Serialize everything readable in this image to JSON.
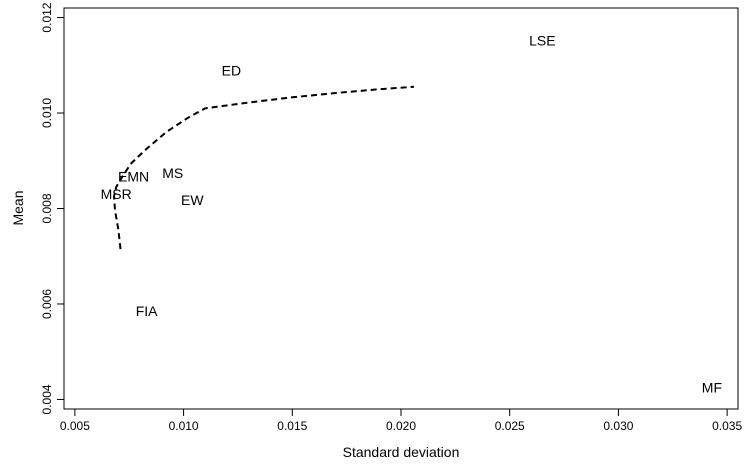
{
  "chart_data": {
    "type": "scatter",
    "title": "",
    "xlabel": "Standard deviation",
    "ylabel": "Mean",
    "xlim": [
      0.0045,
      0.0355
    ],
    "ylim": [
      0.0038,
      0.0122
    ],
    "x_ticks": [
      {
        "value": 0.005,
        "label": "0.005"
      },
      {
        "value": 0.01,
        "label": "0.010"
      },
      {
        "value": 0.015,
        "label": "0.015"
      },
      {
        "value": 0.02,
        "label": "0.020"
      },
      {
        "value": 0.025,
        "label": "0.025"
      },
      {
        "value": 0.03,
        "label": "0.030"
      },
      {
        "value": 0.035,
        "label": "0.035"
      }
    ],
    "y_ticks": [
      {
        "value": 0.004,
        "label": "0.004"
      },
      {
        "value": 0.006,
        "label": "0.006"
      },
      {
        "value": 0.008,
        "label": "0.008"
      },
      {
        "value": 0.01,
        "label": "0.010"
      },
      {
        "value": 0.012,
        "label": "0.012"
      }
    ],
    "grid": false,
    "legend": "none",
    "points": [
      {
        "label": "LSE",
        "x": 0.0265,
        "y": 0.01152
      },
      {
        "label": "ED",
        "x": 0.0122,
        "y": 0.01089
      },
      {
        "label": "MS",
        "x": 0.0095,
        "y": 0.00874
      },
      {
        "label": "EMN",
        "x": 0.0077,
        "y": 0.00867
      },
      {
        "label": "EW",
        "x": 0.0104,
        "y": 0.00818
      },
      {
        "label": "MSR",
        "x": 0.0069,
        "y": 0.0083
      },
      {
        "label": "FIA",
        "x": 0.0083,
        "y": 0.00585
      },
      {
        "label": "MF",
        "x": 0.0343,
        "y": 0.00425
      }
    ],
    "frontier": {
      "style": "dashed",
      "color": "#000000",
      "x": [
        0.0071,
        0.007,
        0.00685,
        0.0068,
        0.0069,
        0.0072,
        0.0076,
        0.0083,
        0.0092,
        0.0102,
        0.011,
        0.013,
        0.015,
        0.017,
        0.019,
        0.0206
      ],
      "y": [
        0.00715,
        0.00755,
        0.00795,
        0.00825,
        0.00845,
        0.00868,
        0.00895,
        0.00925,
        0.0096,
        0.0099,
        0.0101,
        0.01022,
        0.01033,
        0.01042,
        0.0105,
        0.01055
      ]
    }
  }
}
